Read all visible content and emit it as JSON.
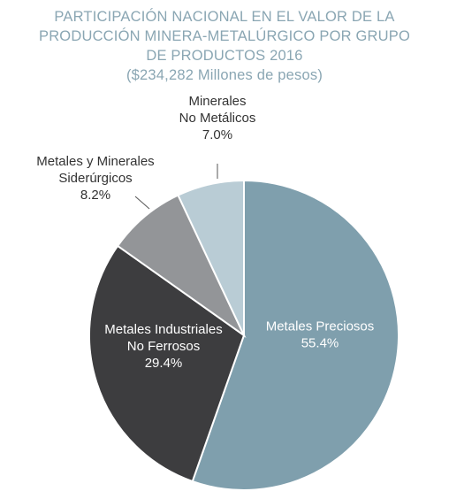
{
  "title_lines": [
    "PARTICIPACIÓN NACIONAL EN EL VALOR DE LA",
    "PRODUCCIÓN MINERA-METALÚRGICO POR GRUPO",
    "DE PRODUCTOS 2016",
    "($234,282 Millones de pesos)"
  ],
  "colors": {
    "title": "#8aa6b3",
    "label_dark": "#333333",
    "label_light": "#ffffff"
  },
  "chart_data": {
    "type": "pie",
    "title": "PARTICIPACIÓN NACIONAL EN EL VALOR DE LA PRODUCCIÓN MINERA-METALÚRGICO POR GRUPO DE PRODUCTOS 2016",
    "subtitle": "($234,282 Millones de pesos)",
    "start": "12 o'clock, clockwise",
    "slices": [
      {
        "name_lines": [
          "Metales Preciosos"
        ],
        "pct_label": "55.4%",
        "value": 55.4,
        "color": "#7f9fad",
        "label_position": "inside",
        "label_color": "#ffffff"
      },
      {
        "name_lines": [
          "Metales Industriales",
          "No Ferrosos"
        ],
        "pct_label": "29.4%",
        "value": 29.4,
        "color": "#3d3d3f",
        "label_position": "inside",
        "label_color": "#ffffff"
      },
      {
        "name_lines": [
          "Metales y Minerales",
          "Siderúrgicos"
        ],
        "pct_label": "8.2%",
        "value": 8.2,
        "color": "#939598",
        "label_position": "outside-left",
        "label_color": "#333333"
      },
      {
        "name_lines": [
          "Minerales",
          "No Metálicos"
        ],
        "pct_label": "7.0%",
        "value": 7.0,
        "color": "#b9ccd5",
        "label_position": "outside-top",
        "label_color": "#333333"
      }
    ]
  }
}
